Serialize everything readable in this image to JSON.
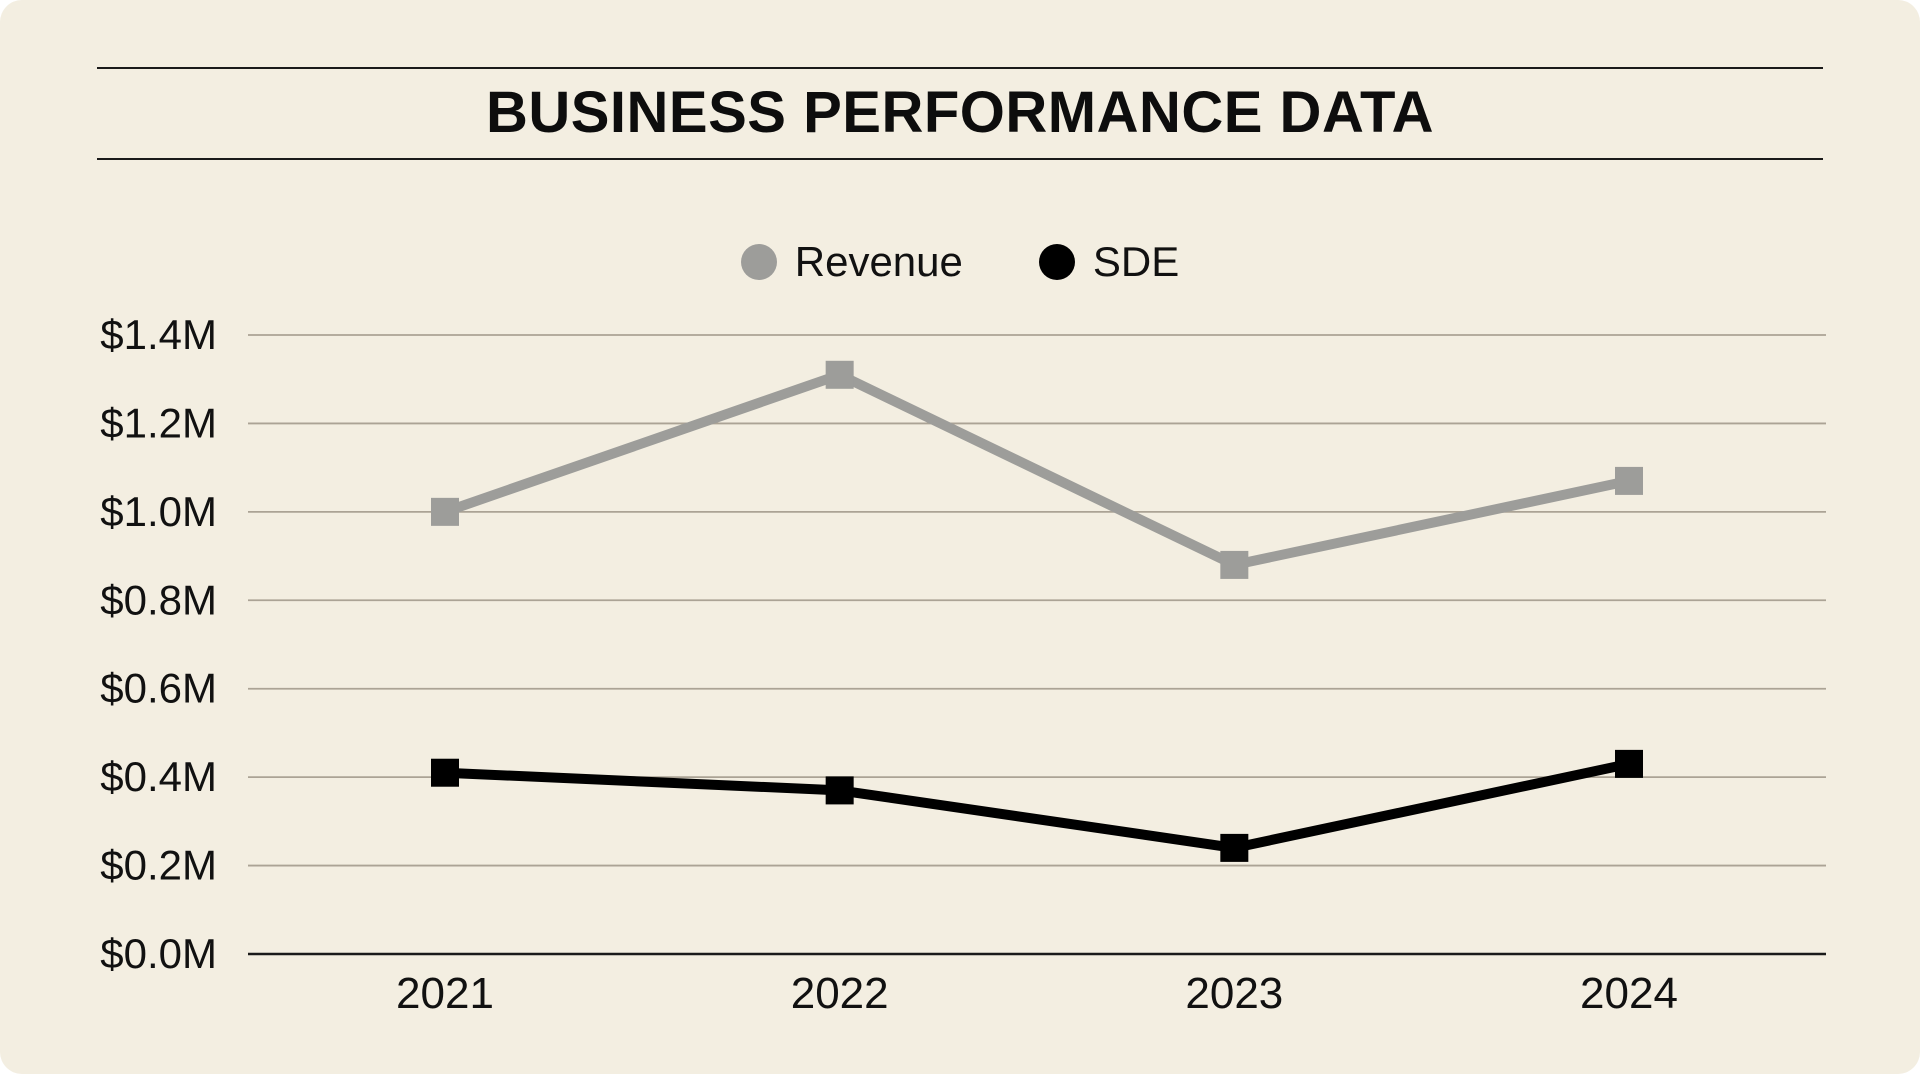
{
  "title": "BUSINESS PERFORMANCE DATA",
  "colors": {
    "background": "#f3eee1",
    "grid": "#aba395",
    "axis": "#1a1a1a",
    "text": "#111111"
  },
  "legend": {
    "items": [
      {
        "label": "Revenue",
        "color": "#9d9d9a"
      },
      {
        "label": "SDE",
        "color": "#000000"
      }
    ]
  },
  "chart_data": {
    "type": "line",
    "title": "BUSINESS PERFORMANCE DATA",
    "categories": [
      "2021",
      "2022",
      "2023",
      "2024"
    ],
    "series": [
      {
        "name": "Revenue",
        "color": "#9d9d9a",
        "marker": "square",
        "values": [
          1.0,
          1.31,
          0.88,
          1.07
        ]
      },
      {
        "name": "SDE",
        "color": "#000000",
        "marker": "square",
        "values": [
          0.41,
          0.37,
          0.24,
          0.43
        ]
      }
    ],
    "xlabel": "",
    "ylabel": "",
    "ylim": [
      0,
      1.4
    ],
    "yticks": [
      0,
      0.2,
      0.4,
      0.6,
      0.8,
      1.0,
      1.2,
      1.4
    ],
    "ytick_labels": [
      "$0.0M",
      "$0.2M",
      "$0.4M",
      "$0.6M",
      "$0.8M",
      "$1.0M",
      "$1.2M",
      "$1.4M"
    ],
    "values_unit": "millions USD",
    "grid": true,
    "legend_position": "top"
  }
}
